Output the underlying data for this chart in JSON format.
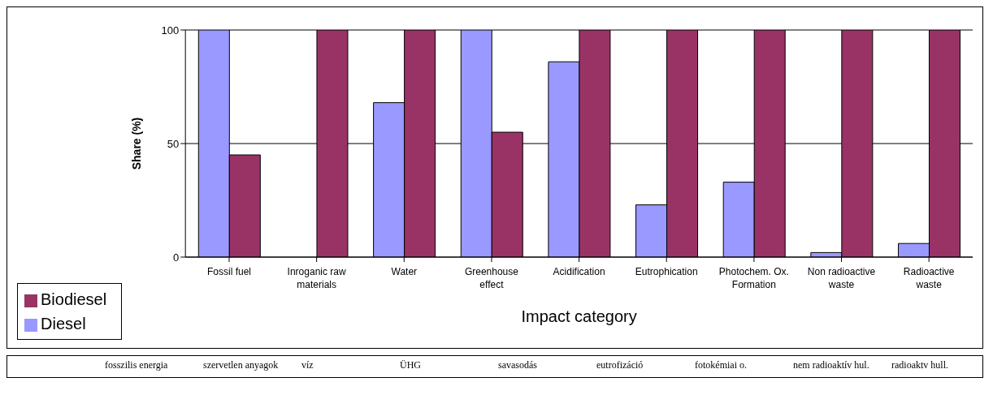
{
  "chart_data": {
    "type": "bar",
    "xlabel": "Impact category",
    "ylabel": "Share (%)",
    "categories": [
      "Fossil fuel",
      "Inroganic raw materials",
      "Water",
      "Greenhouse effect",
      "Acidification",
      "Eutrophication",
      "Photochem. Ox. Formation",
      "Non radioactive waste",
      "Radioactive waste"
    ],
    "series": [
      {
        "name": "Diesel",
        "color": "#9999ff",
        "values": [
          100,
          0,
          68,
          100,
          86,
          23,
          33,
          2,
          6
        ]
      },
      {
        "name": "Biodiesel",
        "color": "#993366",
        "values": [
          45,
          100,
          100,
          55,
          100,
          100,
          100,
          100,
          100
        ]
      }
    ],
    "ylim": [
      0,
      100
    ],
    "yticks": [
      0,
      50,
      100
    ],
    "grid": "y",
    "legend": "bottom left",
    "annotations": [
      "fosszilis energia",
      "szervetlen anyagok",
      "víz",
      "ÜHG",
      "savasodás",
      "eutrofizáció",
      "fotokémiai o.",
      "nem radioaktív hul.",
      "radioaktv hull."
    ]
  }
}
